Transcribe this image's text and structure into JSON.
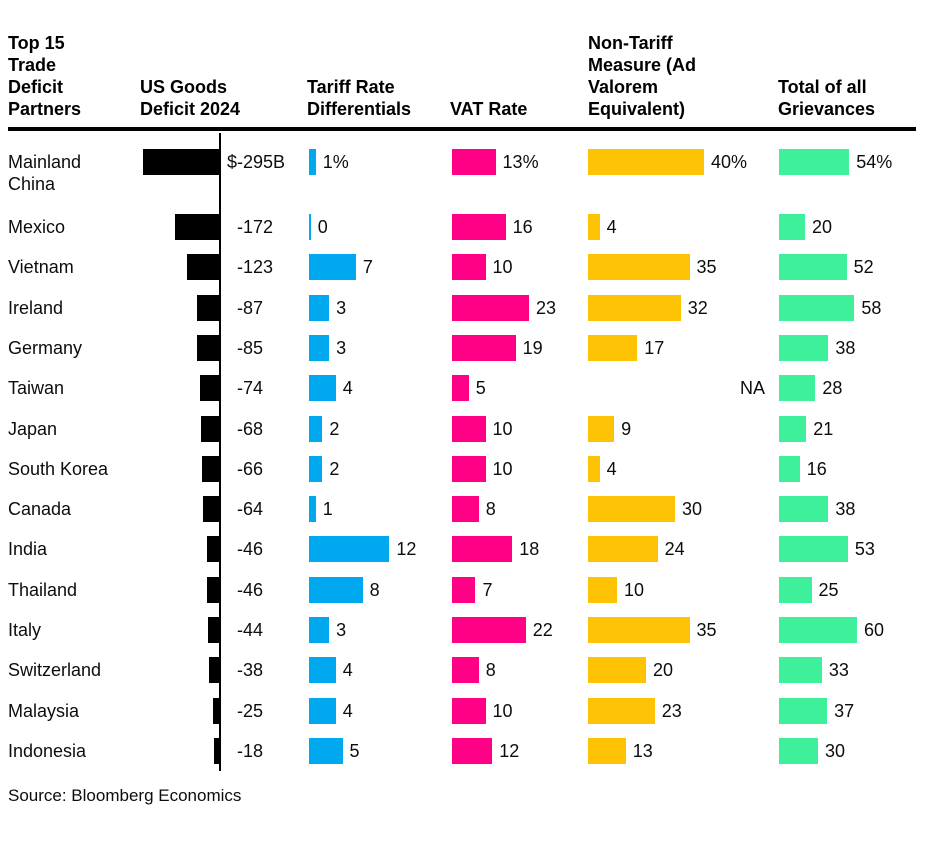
{
  "headers": {
    "partners": "Top 15\nTrade\nDeficit\nPartners",
    "deficit": "US Goods\nDeficit 2024",
    "tariff": "Tariff Rate\nDifferentials",
    "vat": "VAT Rate",
    "ntm": "Non-Tariff\nMeasure (Ad\nValorem\nEquivalent)",
    "total": "Total of all\nGrievances"
  },
  "source": "Source: Bloomberg Economics",
  "colors": {
    "deficit_bar": "#000000",
    "tariff_bar": "#00A8F0",
    "vat_bar": "#FF0087",
    "ntm_bar": "#FFC306",
    "total_bar": "#3EF09A"
  },
  "chart_data": {
    "type": "bar",
    "orientation": "horizontal",
    "title": "Top 15 Trade Deficit Partners",
    "columns": [
      "US Goods Deficit 2024",
      "Tariff Rate Differentials",
      "VAT Rate",
      "Non-Tariff Measure (Ad Valorem Equivalent)",
      "Total of all Grievances"
    ],
    "na_text": "NA",
    "rows": [
      {
        "country": "Mainland China",
        "deficit": -295,
        "deficit_label": "$-295B",
        "tariff": 1,
        "tariff_label": "1%",
        "vat": 13,
        "vat_label": "13%",
        "ntm": 40,
        "ntm_label": "40%",
        "total": 54,
        "total_label": "54%"
      },
      {
        "country": "Mexico",
        "deficit": -172,
        "deficit_label": "-172",
        "tariff": 0,
        "tariff_label": "0",
        "vat": 16,
        "vat_label": "16",
        "ntm": 4,
        "ntm_label": "4",
        "total": 20,
        "total_label": "20"
      },
      {
        "country": "Vietnam",
        "deficit": -123,
        "deficit_label": "-123",
        "tariff": 7,
        "tariff_label": "7",
        "vat": 10,
        "vat_label": "10",
        "ntm": 35,
        "ntm_label": "35",
        "total": 52,
        "total_label": "52"
      },
      {
        "country": "Ireland",
        "deficit": -87,
        "deficit_label": "-87",
        "tariff": 3,
        "tariff_label": "3",
        "vat": 23,
        "vat_label": "23",
        "ntm": 32,
        "ntm_label": "32",
        "total": 58,
        "total_label": "58"
      },
      {
        "country": "Germany",
        "deficit": -85,
        "deficit_label": "-85",
        "tariff": 3,
        "tariff_label": "3",
        "vat": 19,
        "vat_label": "19",
        "ntm": 17,
        "ntm_label": "17",
        "total": 38,
        "total_label": "38"
      },
      {
        "country": "Taiwan",
        "deficit": -74,
        "deficit_label": "-74",
        "tariff": 4,
        "tariff_label": "4",
        "vat": 5,
        "vat_label": "5",
        "ntm": null,
        "ntm_label": "NA",
        "total": 28,
        "total_label": "28"
      },
      {
        "country": "Japan",
        "deficit": -68,
        "deficit_label": "-68",
        "tariff": 2,
        "tariff_label": "2",
        "vat": 10,
        "vat_label": "10",
        "ntm": 9,
        "ntm_label": "9",
        "total": 21,
        "total_label": "21"
      },
      {
        "country": "South Korea",
        "deficit": -66,
        "deficit_label": "-66",
        "tariff": 2,
        "tariff_label": "2",
        "vat": 10,
        "vat_label": "10",
        "ntm": 4,
        "ntm_label": "4",
        "total": 16,
        "total_label": "16"
      },
      {
        "country": "Canada",
        "deficit": -64,
        "deficit_label": "-64",
        "tariff": 1,
        "tariff_label": "1",
        "vat": 8,
        "vat_label": "8",
        "ntm": 30,
        "ntm_label": "30",
        "total": 38,
        "total_label": "38"
      },
      {
        "country": "India",
        "deficit": -46,
        "deficit_label": "-46",
        "tariff": 12,
        "tariff_label": "12",
        "vat": 18,
        "vat_label": "18",
        "ntm": 24,
        "ntm_label": "24",
        "total": 53,
        "total_label": "53"
      },
      {
        "country": "Thailand",
        "deficit": -46,
        "deficit_label": "-46",
        "tariff": 8,
        "tariff_label": "8",
        "vat": 7,
        "vat_label": "7",
        "ntm": 10,
        "ntm_label": "10",
        "total": 25,
        "total_label": "25"
      },
      {
        "country": "Italy",
        "deficit": -44,
        "deficit_label": "-44",
        "tariff": 3,
        "tariff_label": "3",
        "vat": 22,
        "vat_label": "22",
        "ntm": 35,
        "ntm_label": "35",
        "total": 60,
        "total_label": "60"
      },
      {
        "country": "Switzerland",
        "deficit": -38,
        "deficit_label": "-38",
        "tariff": 4,
        "tariff_label": "4",
        "vat": 8,
        "vat_label": "8",
        "ntm": 20,
        "ntm_label": "20",
        "total": 33,
        "total_label": "33"
      },
      {
        "country": "Malaysia",
        "deficit": -25,
        "deficit_label": "-25",
        "tariff": 4,
        "tariff_label": "4",
        "vat": 10,
        "vat_label": "10",
        "ntm": 23,
        "ntm_label": "23",
        "total": 37,
        "total_label": "37"
      },
      {
        "country": "Indonesia",
        "deficit": -18,
        "deficit_label": "-18",
        "tariff": 5,
        "tariff_label": "5",
        "vat": 12,
        "vat_label": "12",
        "ntm": 13,
        "ntm_label": "13",
        "total": 30,
        "total_label": "30"
      }
    ]
  }
}
